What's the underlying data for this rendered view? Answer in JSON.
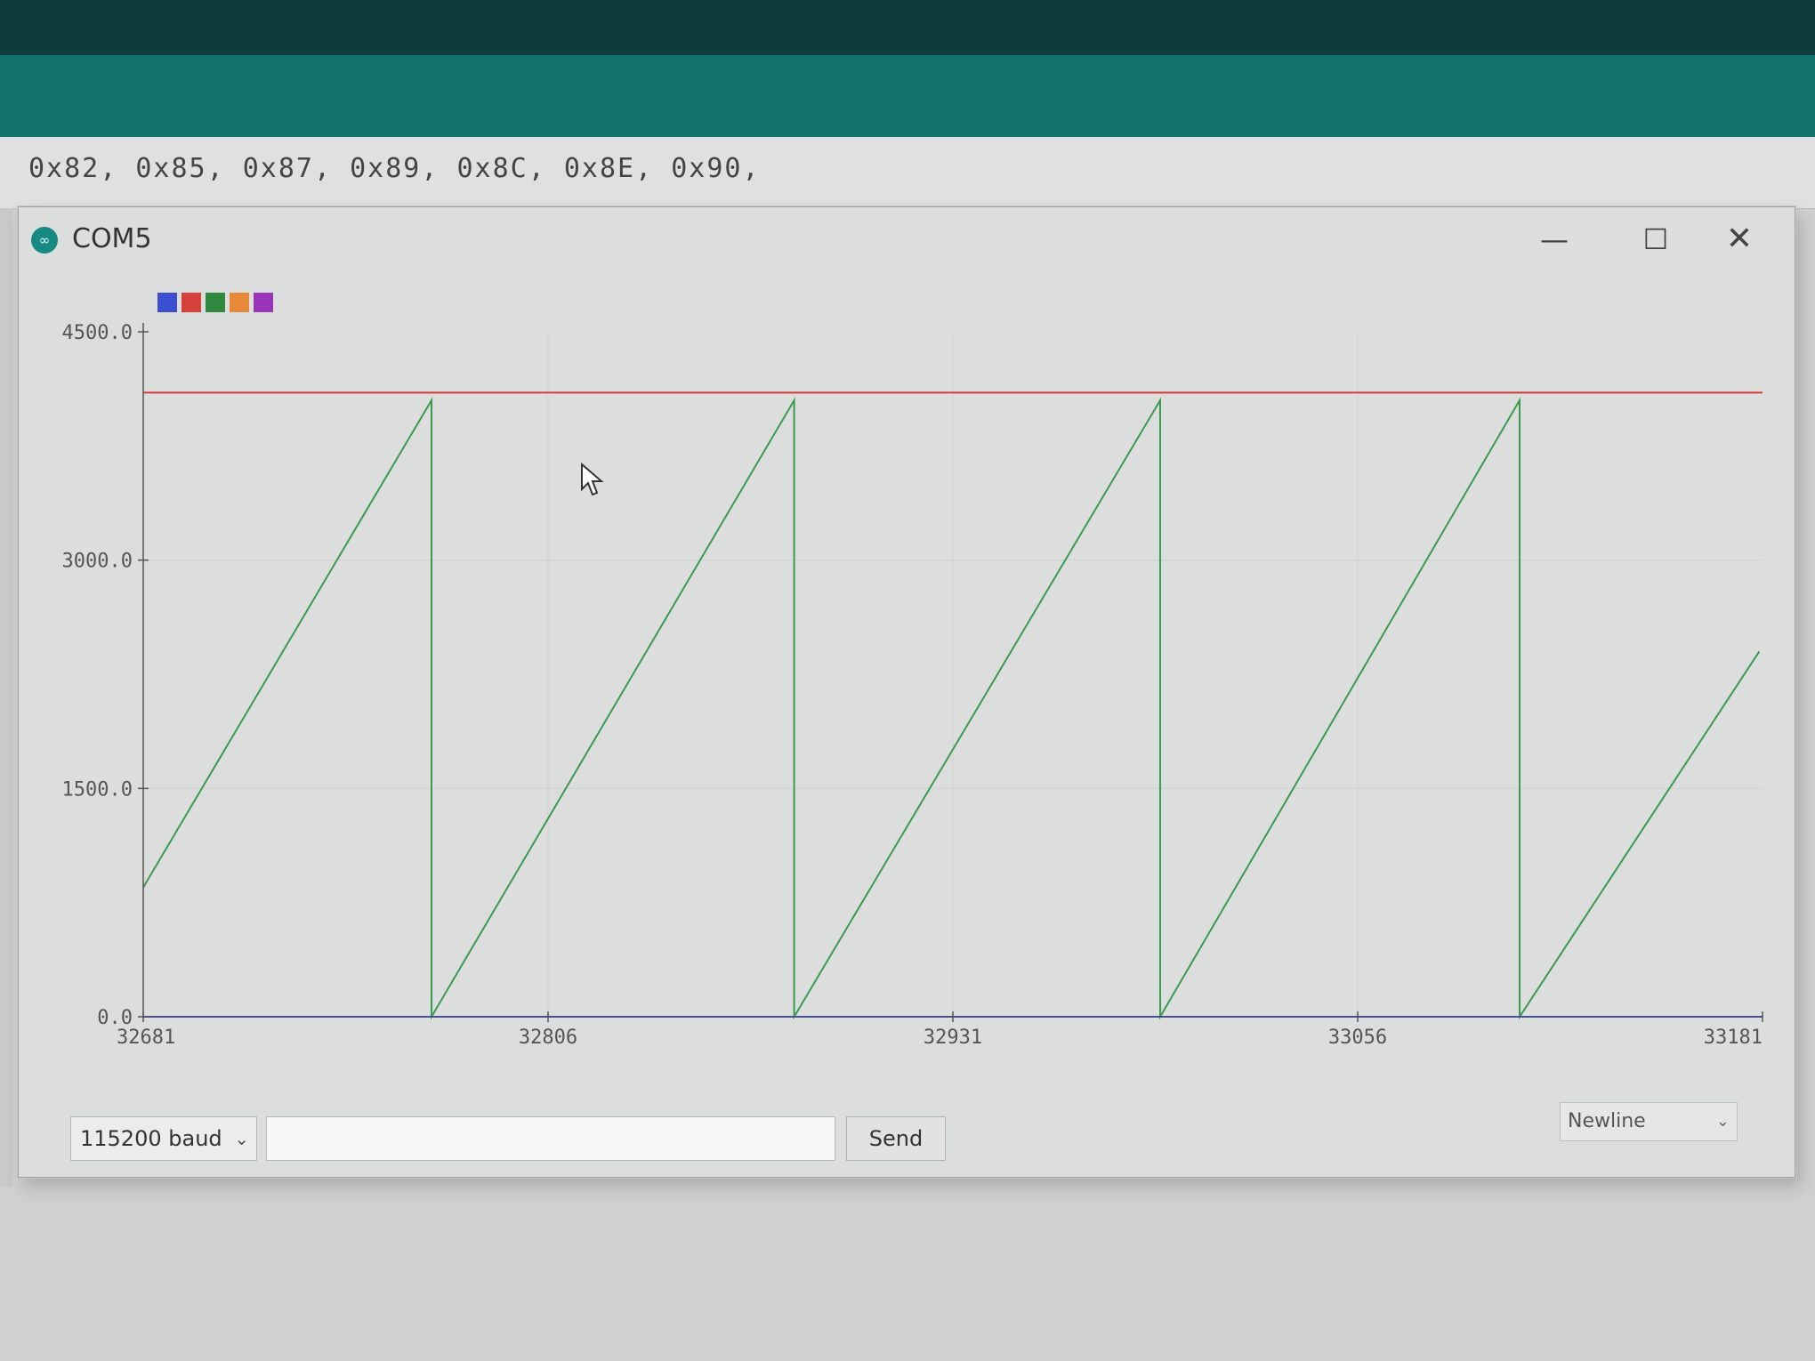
{
  "editor": {
    "code_line": "0x82, 0x85, 0x87, 0x89, 0x8C, 0x8E, 0x90,"
  },
  "window": {
    "title": "COM5",
    "app_icon": "arduino-icon",
    "controls": {
      "minimize": "—",
      "maximize": "☐",
      "close": "✕"
    }
  },
  "legend": {
    "colors": [
      "#3b4fd0",
      "#d6423a",
      "#2f8a3e",
      "#e88a3a",
      "#9a34b8"
    ]
  },
  "chart_data": {
    "type": "line",
    "y_ticks": [
      "4500.0",
      "3000.0",
      "1500.0",
      "0.0"
    ],
    "x_ticks": [
      "32681",
      "32806",
      "32931",
      "33056",
      "33181"
    ],
    "xlim": [
      32681,
      33181
    ],
    "ylim": [
      0,
      4500
    ],
    "grid": true,
    "series": [
      {
        "color": "#3a9a4f",
        "x": [
          32681,
          32770,
          32770,
          32882,
          32882,
          32995,
          32995,
          33106,
          33106,
          33180
        ],
        "y": [
          850,
          4050,
          0,
          4050,
          0,
          4050,
          0,
          4050,
          0,
          2400
        ]
      },
      {
        "color": "#d43a3a",
        "x": [
          32681,
          33181
        ],
        "y": [
          4100,
          4100
        ]
      },
      {
        "color": "#3b4fd0",
        "x": [
          32681,
          33181
        ],
        "y": [
          0,
          0
        ]
      }
    ]
  },
  "controls": {
    "baud": "115200 baud",
    "send_value": "",
    "send_label": "Send",
    "line_ending": "Newline"
  }
}
